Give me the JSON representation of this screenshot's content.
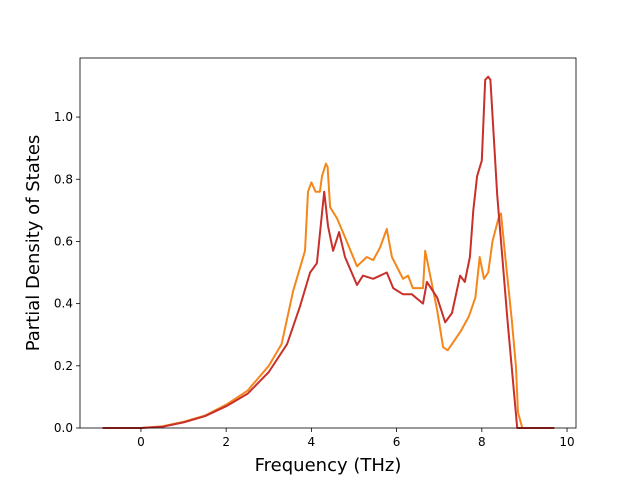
{
  "chart_data": {
    "type": "line",
    "title": "",
    "xlabel": "Frequency (THz)",
    "ylabel": "Partial Density of States",
    "xlim": [
      -1.43,
      10.21
    ],
    "ylim": [
      0,
      1.19
    ],
    "xticks": [
      0,
      2,
      4,
      6,
      8,
      10
    ],
    "xtick_labels": [
      "0",
      "2",
      "4",
      "6",
      "8",
      "10"
    ],
    "yticks": [
      0,
      0.2,
      0.4,
      0.6,
      0.8,
      1.0
    ],
    "ytick_labels": [
      "0.0",
      "0.2",
      "0.4",
      "0.6",
      "0.8",
      "1.0"
    ],
    "grid": false,
    "series": [
      {
        "name": "orange",
        "color": "#f5861a",
        "x": [
          -0.9,
          0,
          0.5,
          1,
          1.5,
          2,
          2.5,
          3,
          3.3,
          3.57,
          3.85,
          3.92,
          4.0,
          4.1,
          4.2,
          4.25,
          4.34,
          4.38,
          4.44,
          4.6,
          4.74,
          5.07,
          5.3,
          5.45,
          5.61,
          5.77,
          5.89,
          6.15,
          6.27,
          6.38,
          6.62,
          6.67,
          6.95,
          7.09,
          7.2,
          7.35,
          7.5,
          7.7,
          7.85,
          7.95,
          8.05,
          8.15,
          8.25,
          8.4,
          8.45,
          8.55,
          8.7,
          8.8,
          8.85,
          8.95,
          9.7
        ],
        "y": [
          0,
          0,
          0.005,
          0.02,
          0.04,
          0.075,
          0.12,
          0.2,
          0.27,
          0.44,
          0.57,
          0.76,
          0.79,
          0.76,
          0.76,
          0.81,
          0.85,
          0.84,
          0.71,
          0.675,
          0.63,
          0.52,
          0.55,
          0.54,
          0.58,
          0.64,
          0.55,
          0.48,
          0.49,
          0.45,
          0.45,
          0.57,
          0.38,
          0.26,
          0.25,
          0.28,
          0.31,
          0.36,
          0.42,
          0.55,
          0.48,
          0.5,
          0.6,
          0.68,
          0.69,
          0.55,
          0.35,
          0.2,
          0.05,
          0,
          0
        ]
      },
      {
        "name": "red",
        "color": "#c8302a",
        "x": [
          -0.9,
          0,
          0.5,
          1,
          1.5,
          2,
          2.5,
          3,
          3.43,
          3.73,
          3.97,
          4.13,
          4.3,
          4.39,
          4.51,
          4.65,
          4.79,
          5.07,
          5.21,
          5.45,
          5.77,
          5.92,
          6.15,
          6.36,
          6.62,
          6.71,
          6.95,
          7.14,
          7.3,
          7.49,
          7.6,
          7.72,
          7.8,
          7.89,
          8.0,
          8.08,
          8.15,
          8.2,
          8.36,
          8.6,
          8.83,
          8.95,
          9.7
        ],
        "y": [
          0,
          0,
          0.004,
          0.018,
          0.038,
          0.07,
          0.11,
          0.18,
          0.27,
          0.39,
          0.5,
          0.53,
          0.76,
          0.65,
          0.57,
          0.63,
          0.55,
          0.46,
          0.49,
          0.48,
          0.5,
          0.45,
          0.43,
          0.43,
          0.4,
          0.47,
          0.42,
          0.34,
          0.37,
          0.49,
          0.47,
          0.55,
          0.7,
          0.81,
          0.86,
          1.12,
          1.13,
          1.12,
          0.75,
          0.35,
          0,
          0,
          0
        ]
      }
    ]
  }
}
